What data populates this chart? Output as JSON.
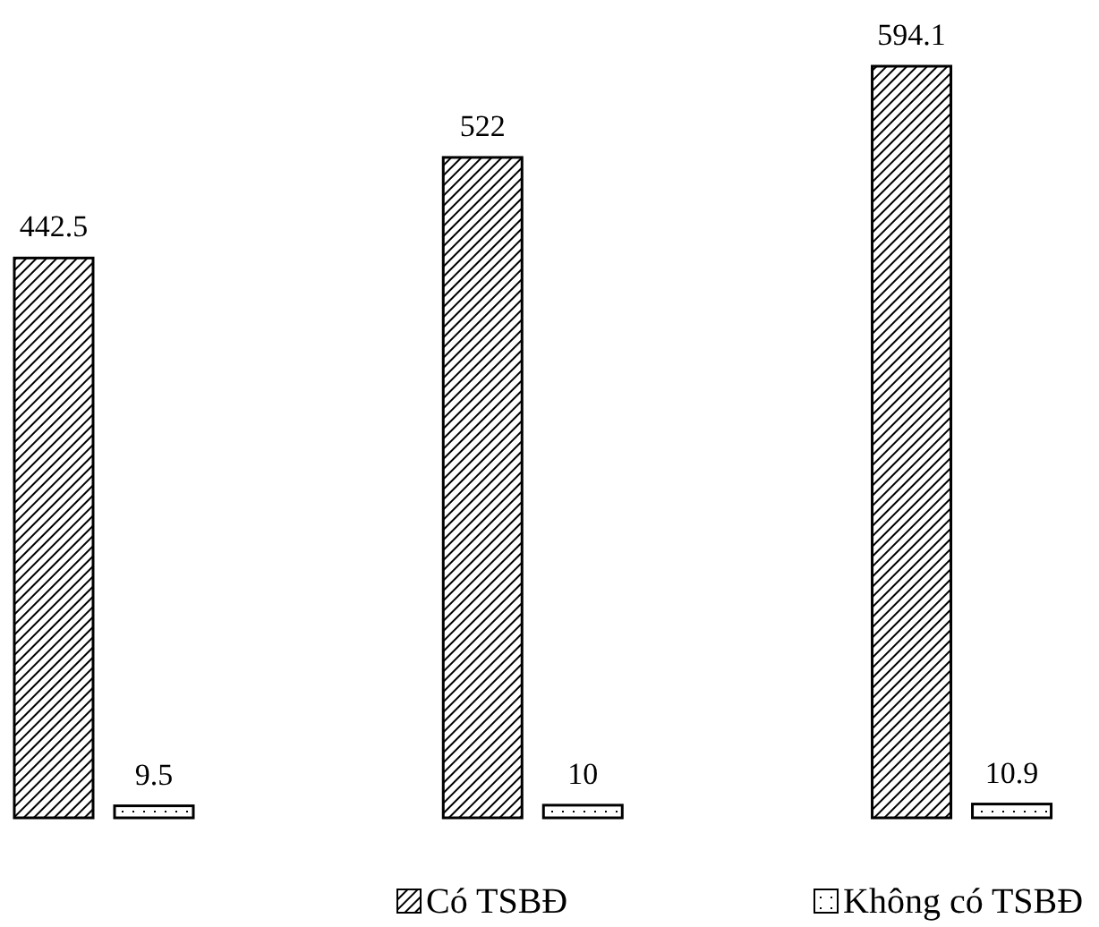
{
  "chart_data": {
    "type": "bar",
    "categories": [
      null,
      null,
      null
    ],
    "series": [
      {
        "name": "Có TSBĐ",
        "color": "#000000",
        "values": [
          442.5,
          522,
          594.1
        ]
      },
      {
        "name": "Không có TSBĐ",
        "color": "#000000",
        "values": [
          9.5,
          10,
          10.9
        ]
      }
    ],
    "data_labels": true,
    "legend": "bottom",
    "grid": false
  }
}
